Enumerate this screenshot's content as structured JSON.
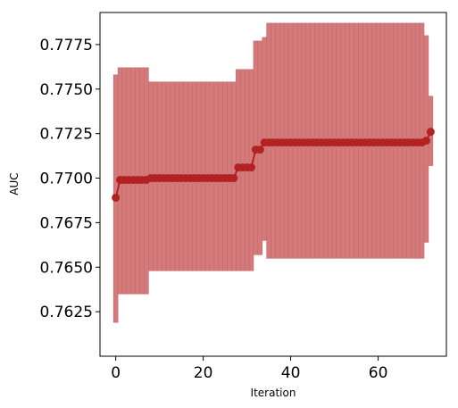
{
  "colors": {
    "line": "#b22222",
    "error_band": "#d47a7a",
    "error_band_edge": "#c46a6a",
    "axes": "#000000",
    "background": "#ffffff"
  },
  "chart_data": {
    "type": "line",
    "title": "",
    "xlabel": "Iteration",
    "ylabel": "AUC",
    "xlim": [
      -3.6,
      75.6
    ],
    "ylim": [
      0.76,
      0.7793
    ],
    "x_ticks": [
      0,
      20,
      40,
      60
    ],
    "x_tick_labels": [
      "0",
      "20",
      "40",
      "60"
    ],
    "y_ticks": [
      0.7625,
      0.765,
      0.7675,
      0.77,
      0.7725,
      0.775,
      0.7775
    ],
    "y_tick_labels": [
      "0.7625",
      "0.7650",
      "0.7675",
      "0.7700",
      "0.7725",
      "0.7750",
      "0.7775"
    ],
    "grid": false,
    "legend": "none",
    "series": [
      {
        "x": [
          0,
          1,
          2,
          3,
          4,
          5,
          6,
          7,
          8,
          9,
          10,
          11,
          12,
          13,
          14,
          15,
          16,
          17,
          18,
          19,
          20,
          21,
          22,
          23,
          24,
          25,
          26,
          27,
          28,
          29,
          30,
          31,
          32,
          33,
          34,
          35,
          36,
          37,
          38,
          39,
          40,
          41,
          42,
          43,
          44,
          45,
          46,
          47,
          48,
          49,
          50,
          51,
          52,
          53,
          54,
          55,
          56,
          57,
          58,
          59,
          60,
          61,
          62,
          63,
          64,
          65,
          66,
          67,
          68,
          69,
          70,
          71,
          72
        ],
        "values": [
          0.7689,
          0.7699,
          0.7699,
          0.7699,
          0.7699,
          0.7699,
          0.7699,
          0.7699,
          0.77,
          0.77,
          0.77,
          0.77,
          0.77,
          0.77,
          0.77,
          0.77,
          0.77,
          0.77,
          0.77,
          0.77,
          0.77,
          0.77,
          0.77,
          0.77,
          0.77,
          0.77,
          0.77,
          0.77,
          0.7706,
          0.7706,
          0.7706,
          0.7706,
          0.7716,
          0.7716,
          0.772,
          0.772,
          0.772,
          0.772,
          0.772,
          0.772,
          0.772,
          0.772,
          0.772,
          0.772,
          0.772,
          0.772,
          0.772,
          0.772,
          0.772,
          0.772,
          0.772,
          0.772,
          0.772,
          0.772,
          0.772,
          0.772,
          0.772,
          0.772,
          0.772,
          0.772,
          0.772,
          0.772,
          0.772,
          0.772,
          0.772,
          0.772,
          0.772,
          0.772,
          0.772,
          0.772,
          0.772,
          0.7721,
          0.7726
        ],
        "lower": [
          0.7619,
          0.7635,
          0.7635,
          0.7635,
          0.7635,
          0.7635,
          0.7635,
          0.7635,
          0.7648,
          0.7648,
          0.7648,
          0.7648,
          0.7648,
          0.7648,
          0.7648,
          0.7648,
          0.7648,
          0.7648,
          0.7648,
          0.7648,
          0.7648,
          0.7648,
          0.7648,
          0.7648,
          0.7648,
          0.7648,
          0.7648,
          0.7648,
          0.7648,
          0.7648,
          0.7648,
          0.7648,
          0.7657,
          0.7657,
          0.7665,
          0.7655,
          0.7655,
          0.7655,
          0.7655,
          0.7655,
          0.7655,
          0.7655,
          0.7655,
          0.7655,
          0.7655,
          0.7655,
          0.7655,
          0.7655,
          0.7655,
          0.7655,
          0.7655,
          0.7655,
          0.7655,
          0.7655,
          0.7655,
          0.7655,
          0.7655,
          0.7655,
          0.7655,
          0.7655,
          0.7655,
          0.7655,
          0.7655,
          0.7655,
          0.7655,
          0.7655,
          0.7655,
          0.7655,
          0.7655,
          0.7655,
          0.7655,
          0.7664,
          0.7707
        ],
        "upper": [
          0.7758,
          0.7762,
          0.7762,
          0.7762,
          0.7762,
          0.7762,
          0.7762,
          0.7762,
          0.7754,
          0.7754,
          0.7754,
          0.7754,
          0.7754,
          0.7754,
          0.7754,
          0.7754,
          0.7754,
          0.7754,
          0.7754,
          0.7754,
          0.7754,
          0.7754,
          0.7754,
          0.7754,
          0.7754,
          0.7754,
          0.7754,
          0.7754,
          0.7761,
          0.7761,
          0.7761,
          0.7761,
          0.7777,
          0.7777,
          0.7779,
          0.7787,
          0.7787,
          0.7787,
          0.7787,
          0.7787,
          0.7787,
          0.7787,
          0.7787,
          0.7787,
          0.7787,
          0.7787,
          0.7787,
          0.7787,
          0.7787,
          0.7787,
          0.7787,
          0.7787,
          0.7787,
          0.7787,
          0.7787,
          0.7787,
          0.7787,
          0.7787,
          0.7787,
          0.7787,
          0.7787,
          0.7787,
          0.7787,
          0.7787,
          0.7787,
          0.7787,
          0.7787,
          0.7787,
          0.7787,
          0.7787,
          0.7787,
          0.778,
          0.7746
        ]
      }
    ]
  }
}
